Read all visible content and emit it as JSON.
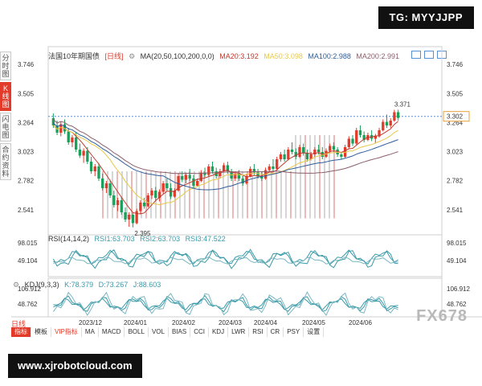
{
  "watermark_tg": "TG: MYYJJPP",
  "watermark_url": "www.xjrobotcloud.com",
  "watermark_fx": "FX678",
  "sidebar": [
    {
      "label": "分时图",
      "active": false
    },
    {
      "label": "K线图",
      "active": true
    },
    {
      "label": "闪电图",
      "active": false
    },
    {
      "label": "合约资料",
      "active": false
    }
  ],
  "main_legend": {
    "title": "法国10年期国债",
    "period": "[日线]",
    "ma_params": "MA(20,50,100,200,0,0)",
    "ma20": "MA20:3.192",
    "ma50": "MA50:3.098",
    "ma100": "MA100:2.988",
    "ma200": "MA200:2.991"
  },
  "rsi_legend": {
    "name": "RSI(14,14,2)",
    "rsi1": "RSI1:63.703",
    "rsi2": "RSI2:63.703",
    "rsi3": "RSI3:47.522"
  },
  "kdj_legend": {
    "name": "KDJ(9,3,3)",
    "k": "K:78.379",
    "d": "D:73.267",
    "j": "J:88.603"
  },
  "period_tab": "日线",
  "toolbar": [
    "指标",
    "模板",
    "VIP指标",
    "MA",
    "MACD",
    "BOLL",
    "VOL",
    "BIAS",
    "CCI",
    "KDJ",
    "LWR",
    "RSI",
    "CR",
    "PSY",
    "设置"
  ],
  "colors": {
    "up": "#e23b2a",
    "down": "#1aa05b",
    "ma20": "#c0392b",
    "ma50": "#e8c84a",
    "ma100": "#2f5d9b",
    "ma200": "#8b5e6b",
    "ind": "#3a9aa8"
  },
  "chart_data": [
    {
      "type": "candlestick",
      "title": "法国10年期国债",
      "y_ticks": [
        "3.746",
        "3.505",
        "3.264",
        "3.023",
        "2.782",
        "2.541"
      ],
      "x_ticks": [
        "2023/12",
        "2024/01",
        "2024/02",
        "2024/03",
        "2024/04",
        "2024/05",
        "2024/06"
      ],
      "ylim": [
        2.36,
        3.8
      ],
      "current_price": "3.302",
      "high_label": "3.371",
      "low_label": "2.395",
      "ohlc": [
        [
          3.3,
          3.34,
          3.22,
          3.24
        ],
        [
          3.24,
          3.28,
          3.16,
          3.18
        ],
        [
          3.18,
          3.27,
          3.15,
          3.25
        ],
        [
          3.25,
          3.29,
          3.17,
          3.19
        ],
        [
          3.19,
          3.22,
          3.08,
          3.1
        ],
        [
          3.1,
          3.16,
          3.06,
          3.14
        ],
        [
          3.14,
          3.18,
          3.02,
          3.04
        ],
        [
          3.04,
          3.09,
          2.97,
          2.99
        ],
        [
          2.99,
          3.05,
          2.93,
          3.03
        ],
        [
          3.03,
          3.06,
          2.92,
          2.94
        ],
        [
          2.94,
          2.98,
          2.84,
          2.86
        ],
        [
          2.86,
          2.92,
          2.82,
          2.9
        ],
        [
          2.9,
          2.93,
          2.78,
          2.8
        ],
        [
          2.8,
          2.84,
          2.7,
          2.72
        ],
        [
          2.72,
          2.78,
          2.68,
          2.76
        ],
        [
          2.76,
          2.79,
          2.64,
          2.66
        ],
        [
          2.66,
          2.7,
          2.56,
          2.58
        ],
        [
          2.58,
          2.64,
          2.53,
          2.62
        ],
        [
          2.62,
          2.65,
          2.5,
          2.52
        ],
        [
          2.52,
          2.56,
          2.44,
          2.46
        ],
        [
          2.46,
          2.52,
          2.4,
          2.5
        ],
        [
          2.5,
          2.52,
          2.395,
          2.43
        ],
        [
          2.43,
          2.55,
          2.42,
          2.53
        ],
        [
          2.53,
          2.62,
          2.51,
          2.6
        ],
        [
          2.6,
          2.64,
          2.55,
          2.57
        ],
        [
          2.57,
          2.68,
          2.56,
          2.66
        ],
        [
          2.66,
          2.72,
          2.63,
          2.7
        ],
        [
          2.7,
          2.73,
          2.62,
          2.64
        ],
        [
          2.64,
          2.71,
          2.61,
          2.69
        ],
        [
          2.69,
          2.78,
          2.67,
          2.76
        ],
        [
          2.76,
          2.8,
          2.7,
          2.72
        ],
        [
          2.72,
          2.76,
          2.63,
          2.65
        ],
        [
          2.65,
          2.72,
          2.64,
          2.7
        ],
        [
          2.7,
          2.84,
          2.69,
          2.82
        ],
        [
          2.82,
          2.86,
          2.77,
          2.79
        ],
        [
          2.79,
          2.85,
          2.76,
          2.83
        ],
        [
          2.83,
          2.88,
          2.78,
          2.8
        ],
        [
          2.8,
          2.83,
          2.72,
          2.74
        ],
        [
          2.74,
          2.8,
          2.73,
          2.78
        ],
        [
          2.78,
          2.87,
          2.77,
          2.85
        ],
        [
          2.85,
          2.89,
          2.81,
          2.83
        ],
        [
          2.83,
          2.92,
          2.82,
          2.9
        ],
        [
          2.9,
          2.94,
          2.84,
          2.86
        ],
        [
          2.86,
          2.89,
          2.8,
          2.82
        ],
        [
          2.82,
          2.88,
          2.8,
          2.86
        ],
        [
          2.86,
          2.93,
          2.85,
          2.91
        ],
        [
          2.91,
          2.94,
          2.84,
          2.86
        ],
        [
          2.86,
          2.88,
          2.78,
          2.8
        ],
        [
          2.8,
          2.86,
          2.78,
          2.84
        ],
        [
          2.84,
          2.87,
          2.78,
          2.8
        ],
        [
          2.8,
          2.82,
          2.74,
          2.76
        ],
        [
          2.76,
          2.84,
          2.75,
          2.82
        ],
        [
          2.82,
          2.9,
          2.81,
          2.88
        ],
        [
          2.88,
          2.92,
          2.83,
          2.85
        ],
        [
          2.85,
          2.88,
          2.8,
          2.82
        ],
        [
          2.82,
          2.86,
          2.78,
          2.8
        ],
        [
          2.8,
          2.89,
          2.79,
          2.87
        ],
        [
          2.87,
          2.92,
          2.85,
          2.9
        ],
        [
          2.9,
          2.96,
          2.86,
          2.88
        ],
        [
          2.88,
          2.98,
          2.87,
          2.96
        ],
        [
          2.96,
          3.02,
          2.94,
          3.0
        ],
        [
          3.0,
          3.04,
          2.94,
          2.96
        ],
        [
          2.96,
          3.06,
          2.95,
          3.04
        ],
        [
          3.04,
          3.1,
          3.0,
          3.02
        ],
        [
          3.02,
          3.05,
          2.96,
          2.98
        ],
        [
          2.98,
          3.08,
          2.97,
          3.06
        ],
        [
          3.06,
          3.09,
          2.99,
          3.01
        ],
        [
          3.01,
          3.04,
          2.94,
          2.96
        ],
        [
          2.96,
          3.02,
          2.95,
          3.0
        ],
        [
          3.0,
          3.06,
          2.98,
          3.04
        ],
        [
          3.04,
          3.08,
          3.0,
          3.02
        ],
        [
          3.02,
          3.06,
          2.96,
          2.98
        ],
        [
          2.98,
          3.05,
          2.97,
          3.03
        ],
        [
          3.03,
          3.09,
          3.01,
          3.07
        ],
        [
          3.07,
          3.1,
          3.02,
          3.04
        ],
        [
          3.04,
          3.06,
          2.98,
          3.0
        ],
        [
          3.0,
          3.02,
          2.96,
          2.98
        ],
        [
          2.98,
          3.08,
          2.97,
          3.06
        ],
        [
          3.06,
          3.15,
          3.05,
          3.13
        ],
        [
          3.13,
          3.16,
          3.07,
          3.09
        ],
        [
          3.09,
          3.22,
          3.08,
          3.2
        ],
        [
          3.2,
          3.24,
          3.14,
          3.16
        ],
        [
          3.16,
          3.19,
          3.1,
          3.12
        ],
        [
          3.12,
          3.18,
          3.11,
          3.16
        ],
        [
          3.16,
          3.2,
          3.11,
          3.13
        ],
        [
          3.13,
          3.17,
          3.09,
          3.15
        ],
        [
          3.15,
          3.22,
          3.14,
          3.2
        ],
        [
          3.2,
          3.29,
          3.19,
          3.27
        ],
        [
          3.27,
          3.33,
          3.22,
          3.24
        ],
        [
          3.24,
          3.3,
          3.22,
          3.28
        ],
        [
          3.28,
          3.37,
          3.27,
          3.35
        ],
        [
          3.35,
          3.371,
          3.28,
          3.302
        ]
      ]
    },
    {
      "type": "line",
      "title": "RSI(14,14,2)",
      "y_ticks": [
        "98.015",
        "49.104"
      ],
      "series": [
        {
          "name": "RSI1"
        },
        {
          "name": "RSI2"
        },
        {
          "name": "RSI3"
        }
      ]
    },
    {
      "type": "line",
      "title": "KDJ(9,3,3)",
      "y_ticks": [
        "106.912",
        "48.762"
      ],
      "series": [
        {
          "name": "K"
        },
        {
          "name": "D"
        },
        {
          "name": "J"
        }
      ]
    }
  ]
}
